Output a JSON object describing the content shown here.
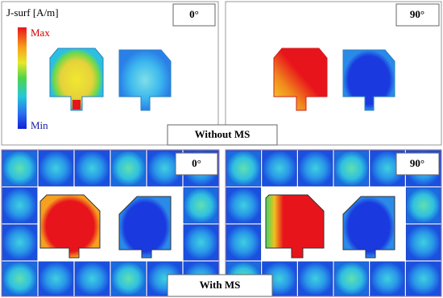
{
  "legend": {
    "title": "J-surf [A/m]",
    "max": "Max",
    "min": "Min"
  },
  "panels": [
    {
      "angle": "0°"
    },
    {
      "angle": "90°"
    },
    {
      "angle": "0°"
    },
    {
      "angle": "90°"
    }
  ],
  "captions": [
    "Without MS",
    "With MS"
  ]
}
